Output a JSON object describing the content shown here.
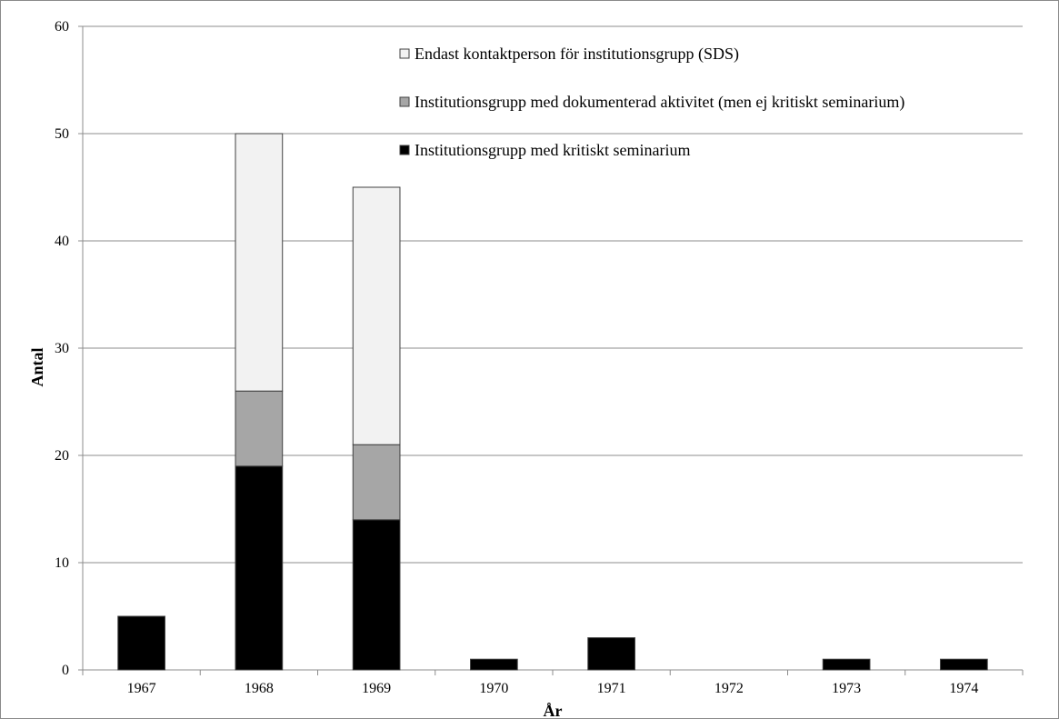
{
  "chart_data": {
    "type": "bar",
    "stacked": true,
    "categories": [
      "1967",
      "1968",
      "1969",
      "1970",
      "1971",
      "1972",
      "1973",
      "1974"
    ],
    "series": [
      {
        "name": "Institutionsgrupp med kritiskt seminarium",
        "color": "#000000",
        "values": [
          5,
          19,
          14,
          1,
          3,
          0,
          1,
          1
        ]
      },
      {
        "name": "Institutionsgrupp med dokumenterad aktivitet (men ej kritiskt seminarium)",
        "color": "#a6a6a6",
        "values": [
          0,
          7,
          7,
          0,
          0,
          0,
          0,
          0
        ]
      },
      {
        "name": "Endast kontaktperson för institutionsgrupp (SDS)",
        "color": "#f2f2f2",
        "values": [
          0,
          24,
          24,
          0,
          0,
          0,
          0,
          0
        ]
      }
    ],
    "legend_order": [
      2,
      1,
      0
    ],
    "legend_position": "top-right",
    "xlabel": "År",
    "ylabel": "Antal",
    "ylim": [
      0,
      60
    ],
    "yticks": [
      0,
      10,
      20,
      30,
      40,
      50,
      60
    ],
    "grid": true
  }
}
